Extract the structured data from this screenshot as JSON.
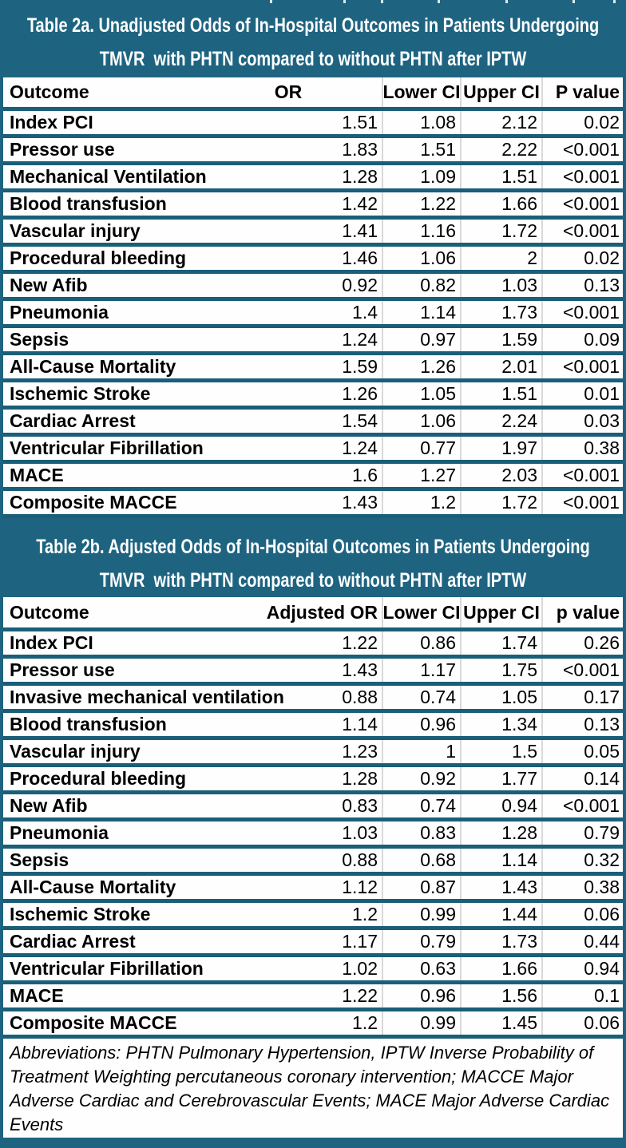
{
  "colors": {
    "teal_band": "#1E6481",
    "row_separator": "#1B5E7A",
    "column_grid": "#D9D9D9",
    "row_background": "#FEFEFE",
    "title_text": "#FFFFFF",
    "body_text": "#000000"
  },
  "tables": [
    {
      "id": "table-2a",
      "title_line1": "Table 2a. Unadjusted Odds of In-Hospital Outcomes in Patients Undergoing",
      "title_line2": "TMVR  with PHTN compared to without PHTN after IPTW",
      "columns": {
        "outcome": "Outcome",
        "or": "OR",
        "lower": "Lower CI",
        "upper": "Upper CI",
        "p": "P value"
      },
      "rows": [
        {
          "outcome": "Index PCI",
          "or": "1.51",
          "lower": "1.08",
          "upper": "2.12",
          "p": "0.02"
        },
        {
          "outcome": "Pressor use",
          "or": "1.83",
          "lower": "1.51",
          "upper": "2.22",
          "p": "<0.001"
        },
        {
          "outcome": "Mechanical Ventilation",
          "or": "1.28",
          "lower": "1.09",
          "upper": "1.51",
          "p": "<0.001"
        },
        {
          "outcome": "Blood transfusion",
          "or": "1.42",
          "lower": "1.22",
          "upper": "1.66",
          "p": "<0.001"
        },
        {
          "outcome": "Vascular injury",
          "or": "1.41",
          "lower": "1.16",
          "upper": "1.72",
          "p": "<0.001"
        },
        {
          "outcome": "Procedural bleeding",
          "or": "1.46",
          "lower": "1.06",
          "upper": "2",
          "p": "0.02"
        },
        {
          "outcome": "New Afib",
          "or": "0.92",
          "lower": "0.82",
          "upper": "1.03",
          "p": "0.13"
        },
        {
          "outcome": "Pneumonia",
          "or": "1.4",
          "lower": "1.14",
          "upper": "1.73",
          "p": "<0.001"
        },
        {
          "outcome": "Sepsis",
          "or": "1.24",
          "lower": "0.97",
          "upper": "1.59",
          "p": "0.09"
        },
        {
          "outcome": "All-Cause Mortality",
          "or": "1.59",
          "lower": "1.26",
          "upper": "2.01",
          "p": "<0.001"
        },
        {
          "outcome": "Ischemic Stroke",
          "or": "1.26",
          "lower": "1.05",
          "upper": "1.51",
          "p": "0.01"
        },
        {
          "outcome": "Cardiac Arrest",
          "or": "1.54",
          "lower": "1.06",
          "upper": "2.24",
          "p": "0.03"
        },
        {
          "outcome": "Ventricular Fibrillation",
          "or": "1.24",
          "lower": "0.77",
          "upper": "1.97",
          "p": "0.38"
        },
        {
          "outcome": "MACE",
          "or": "1.6",
          "lower": "1.27",
          "upper": "2.03",
          "p": "<0.001"
        },
        {
          "outcome": "Composite MACCE",
          "or": "1.43",
          "lower": "1.2",
          "upper": "1.72",
          "p": "<0.001"
        }
      ]
    },
    {
      "id": "table-2b",
      "title_line1": "Table 2b. Adjusted Odds of In-Hospital Outcomes in Patients Undergoing",
      "title_line2": "TMVR  with PHTN compared to without PHTN after IPTW",
      "columns": {
        "outcome": "Outcome",
        "or": "Adjusted OR",
        "lower": "Lower CI",
        "upper": "Upper CI",
        "p": "p value"
      },
      "rows": [
        {
          "outcome": "Index PCI",
          "or": "1.22",
          "lower": "0.86",
          "upper": "1.74",
          "p": "0.26"
        },
        {
          "outcome": "Pressor use",
          "or": "1.43",
          "lower": "1.17",
          "upper": "1.75",
          "p": "<0.001"
        },
        {
          "outcome": "Invasive mechanical ventilation",
          "or": "0.88",
          "lower": "0.74",
          "upper": "1.05",
          "p": "0.17"
        },
        {
          "outcome": "Blood transfusion",
          "or": "1.14",
          "lower": "0.96",
          "upper": "1.34",
          "p": "0.13"
        },
        {
          "outcome": "Vascular injury",
          "or": "1.23",
          "lower": "1",
          "upper": "1.5",
          "p": "0.05"
        },
        {
          "outcome": "Procedural bleeding",
          "or": "1.28",
          "lower": "0.92",
          "upper": "1.77",
          "p": "0.14"
        },
        {
          "outcome": "New Afib",
          "or": "0.83",
          "lower": "0.74",
          "upper": "0.94",
          "p": "<0.001"
        },
        {
          "outcome": "Pneumonia",
          "or": "1.03",
          "lower": "0.83",
          "upper": "1.28",
          "p": "0.79"
        },
        {
          "outcome": "Sepsis",
          "or": "0.88",
          "lower": "0.68",
          "upper": "1.14",
          "p": "0.32"
        },
        {
          "outcome": "All-Cause Mortality",
          "or": "1.12",
          "lower": "0.87",
          "upper": "1.43",
          "p": "0.38"
        },
        {
          "outcome": "Ischemic Stroke",
          "or": "1.2",
          "lower": "0.99",
          "upper": "1.44",
          "p": "0.06"
        },
        {
          "outcome": "Cardiac Arrest",
          "or": "1.17",
          "lower": "0.79",
          "upper": "1.73",
          "p": "0.44"
        },
        {
          "outcome": "Ventricular Fibrillation",
          "or": "1.02",
          "lower": "0.63",
          "upper": "1.66",
          "p": "0.94"
        },
        {
          "outcome": "MACE",
          "or": "1.22",
          "lower": "0.96",
          "upper": "1.56",
          "p": "0.1"
        },
        {
          "outcome": "Composite MACCE",
          "or": "1.2",
          "lower": "0.99",
          "upper": "1.45",
          "p": "0.06"
        }
      ]
    }
  ],
  "footnote": {
    "lines": [
      "Abbreviations: PHTN Pulmonary Hypertension, IPTW Inverse Probability of",
      "Treatment Weighting percutaneous coronary intervention; MACCE Major",
      "Adverse Cardiac and Cerebrovascular Events; MACE Major Adverse Cardiac",
      "Events"
    ]
  }
}
